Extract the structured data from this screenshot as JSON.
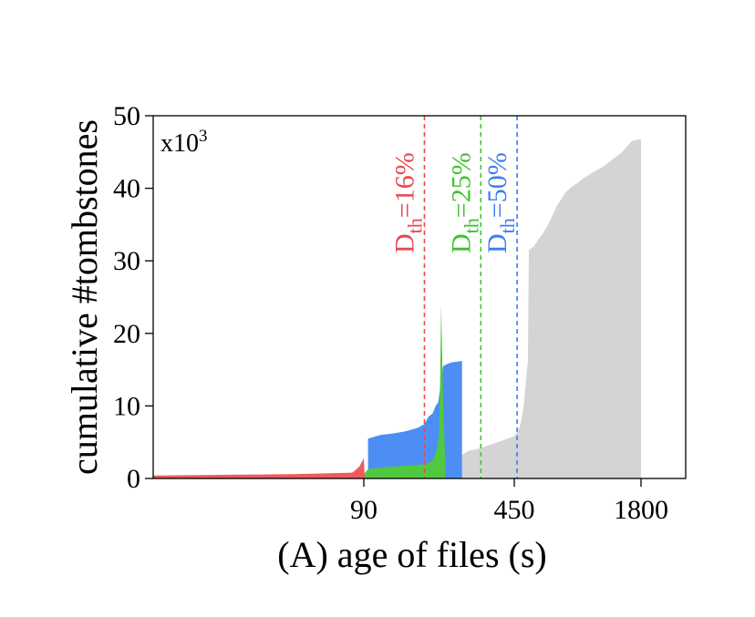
{
  "chart_data": {
    "type": "area",
    "xlabel": "(A) age of files (s)",
    "ylabel": "cumulative #tombstones",
    "y_multiplier": "x10",
    "y_multiplier_exp": "3",
    "ylim": [
      0,
      50
    ],
    "yticks": [
      0,
      10,
      20,
      30,
      40,
      50
    ],
    "x_ticks": [
      {
        "label": "90",
        "value": 90
      },
      {
        "label": "450",
        "value": 450
      },
      {
        "label": "1800",
        "value": 1800
      }
    ],
    "grid": false,
    "thresholds": [
      {
        "base": "D",
        "sub": "th",
        "rest": "=16%",
        "color": "#e8484f",
        "x_value": 235
      },
      {
        "base": "D",
        "sub": "th",
        "rest": "=25%",
        "color": "#3fc22f",
        "x_value": 370
      },
      {
        "base": "D",
        "sub": "th",
        "rest": "=50%",
        "color": "#3d7cf2",
        "x_value": 480
      }
    ],
    "series": [
      {
        "color": "#d4d4d4",
        "points": [
          [
            325,
            3.2
          ],
          [
            340,
            3.8
          ],
          [
            355,
            4.0
          ],
          [
            370,
            4.2
          ],
          [
            390,
            4.6
          ],
          [
            410,
            5.0
          ],
          [
            430,
            5.4
          ],
          [
            450,
            5.8
          ],
          [
            470,
            6.2
          ],
          [
            490,
            6.6
          ],
          [
            510,
            7.2
          ],
          [
            525,
            8.0
          ],
          [
            540,
            9.2
          ],
          [
            555,
            10.5
          ],
          [
            565,
            12.0
          ],
          [
            575,
            13.5
          ],
          [
            585,
            15.0
          ],
          [
            595,
            16.0
          ],
          [
            605,
            31.5
          ],
          [
            660,
            32.0
          ],
          [
            700,
            32.8
          ],
          [
            740,
            33.5
          ],
          [
            790,
            34.5
          ],
          [
            850,
            36.0
          ],
          [
            900,
            37.5
          ],
          [
            950,
            38.5
          ],
          [
            1000,
            39.5
          ],
          [
            1060,
            40.2
          ],
          [
            1130,
            40.8
          ],
          [
            1200,
            41.5
          ],
          [
            1300,
            42.3
          ],
          [
            1400,
            43.0
          ],
          [
            1500,
            44.0
          ],
          [
            1600,
            45.0
          ],
          [
            1700,
            46.5
          ],
          [
            1800,
            46.8
          ]
        ]
      },
      {
        "color": "#4d8ef5",
        "points": [
          [
            100,
            5.5
          ],
          [
            130,
            6.0
          ],
          [
            160,
            6.2
          ],
          [
            190,
            6.5
          ],
          [
            220,
            7.0
          ],
          [
            235,
            7.5
          ],
          [
            245,
            8.5
          ],
          [
            255,
            9.0
          ],
          [
            262,
            10.0
          ],
          [
            268,
            10.5
          ],
          [
            274,
            13.0
          ],
          [
            280,
            15.5
          ],
          [
            290,
            15.8
          ],
          [
            300,
            16.0
          ],
          [
            315,
            16.1
          ],
          [
            325,
            16.2
          ]
        ]
      },
      {
        "color": "#50c83f",
        "points": [
          [
            90,
            0.6
          ],
          [
            100,
            1.3
          ],
          [
            150,
            1.6
          ],
          [
            200,
            1.8
          ],
          [
            240,
            2.0
          ],
          [
            255,
            2.5
          ],
          [
            265,
            4.0
          ],
          [
            270,
            6.0
          ],
          [
            273,
            15.0
          ],
          [
            275,
            24.0
          ],
          [
            280,
            10.0
          ],
          [
            285,
            2.0
          ]
        ]
      },
      {
        "color": "#f05a5f",
        "points": [
          [
            0,
            0.4
          ],
          [
            30,
            0.5
          ],
          [
            60,
            0.6
          ],
          [
            85,
            0.8
          ],
          [
            88,
            1.6
          ],
          [
            90,
            2.8
          ],
          [
            92,
            0.3
          ],
          [
            96,
            0.0
          ]
        ]
      }
    ]
  }
}
